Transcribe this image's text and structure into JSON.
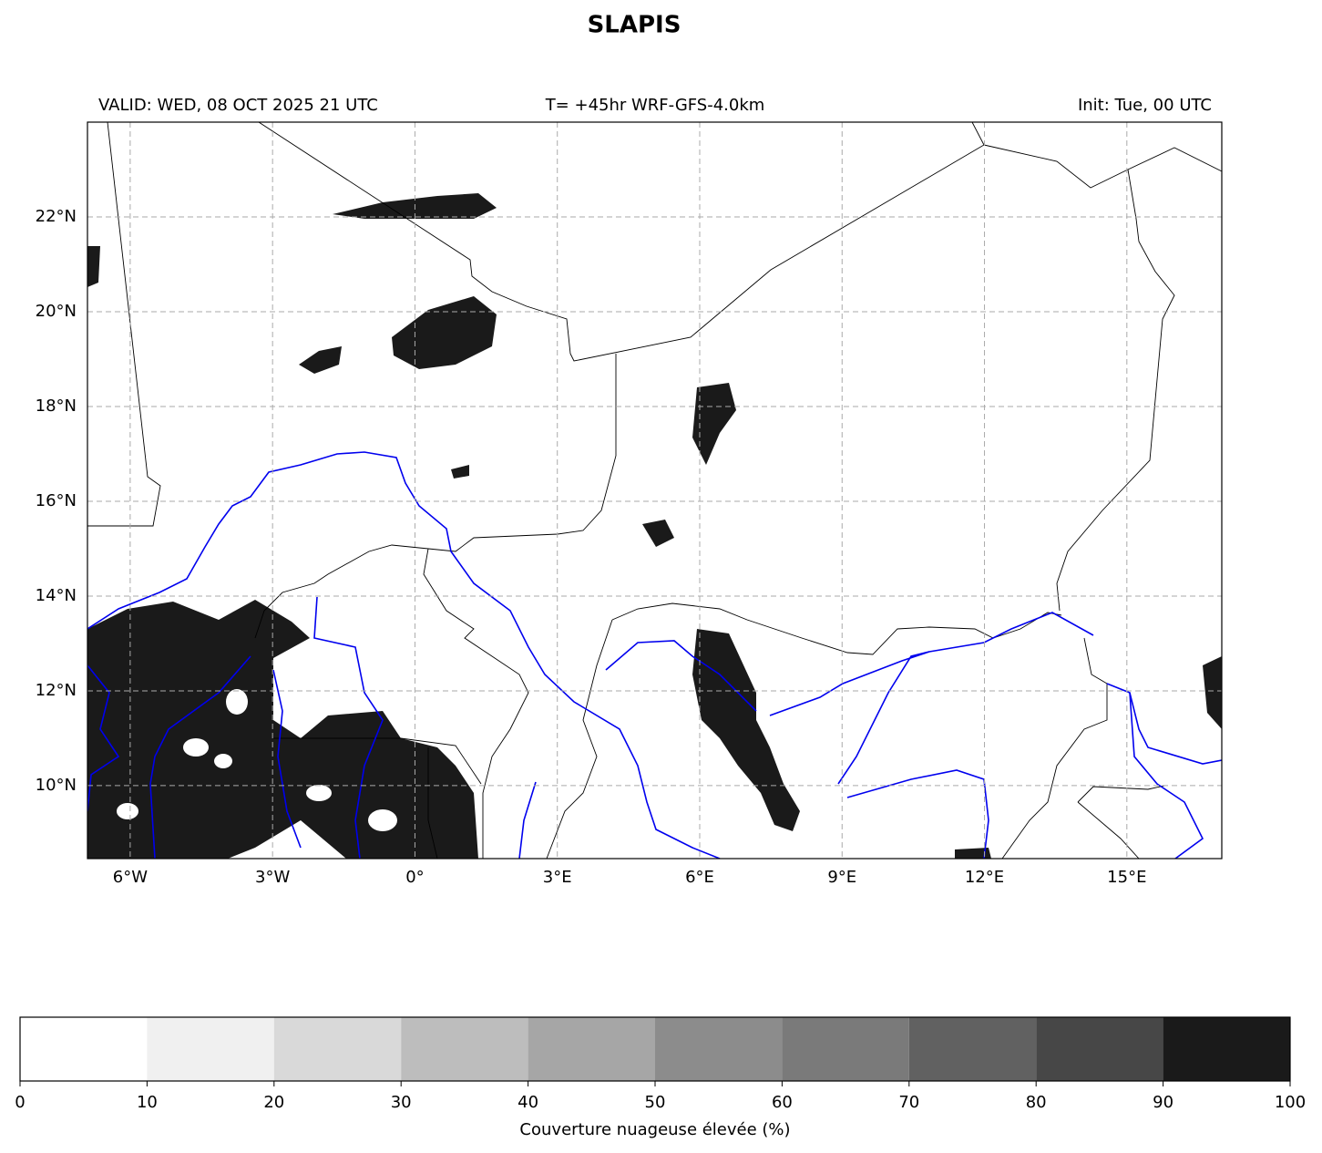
{
  "title": "SLAPIS",
  "header": {
    "valid": "VALID: WED, 08 OCT 2025 21 UTC",
    "run": "T= +45hr WRF-GFS-4.0km",
    "init": "Init: Tue, 00 UTC"
  },
  "map": {
    "lon_range": [
      -6.9,
      17.0
    ],
    "lat_range": [
      8.46,
      24.0
    ],
    "grid": true,
    "lon_ticks": [
      {
        "value": -6,
        "label": "6°W"
      },
      {
        "value": -3,
        "label": "3°W"
      },
      {
        "value": 0,
        "label": "0°"
      },
      {
        "value": 3,
        "label": "3°E"
      },
      {
        "value": 6,
        "label": "6°E"
      },
      {
        "value": 9,
        "label": "9°E"
      },
      {
        "value": 12,
        "label": "12°E"
      },
      {
        "value": 15,
        "label": "15°E"
      }
    ],
    "lat_ticks": [
      {
        "value": 10,
        "label": "10°N"
      },
      {
        "value": 12,
        "label": "12°N"
      },
      {
        "value": 14,
        "label": "14°N"
      },
      {
        "value": 16,
        "label": "16°N"
      },
      {
        "value": 18,
        "label": "18°N"
      },
      {
        "value": 20,
        "label": "20°N"
      },
      {
        "value": 22,
        "label": "22°N"
      }
    ]
  },
  "colorbar": {
    "label": "Couverture nuageuse élevée (%)",
    "range": [
      0,
      100
    ],
    "ticks": [
      0,
      10,
      20,
      30,
      40,
      50,
      60,
      70,
      80,
      90,
      100
    ],
    "colors": [
      "#ffffff",
      "#f0f0f0",
      "#d9d9d9",
      "#bdbdbd",
      "#a6a6a6",
      "#8c8c8c",
      "#7a7a7a",
      "#616161",
      "#474747",
      "#1a1a1a"
    ]
  }
}
